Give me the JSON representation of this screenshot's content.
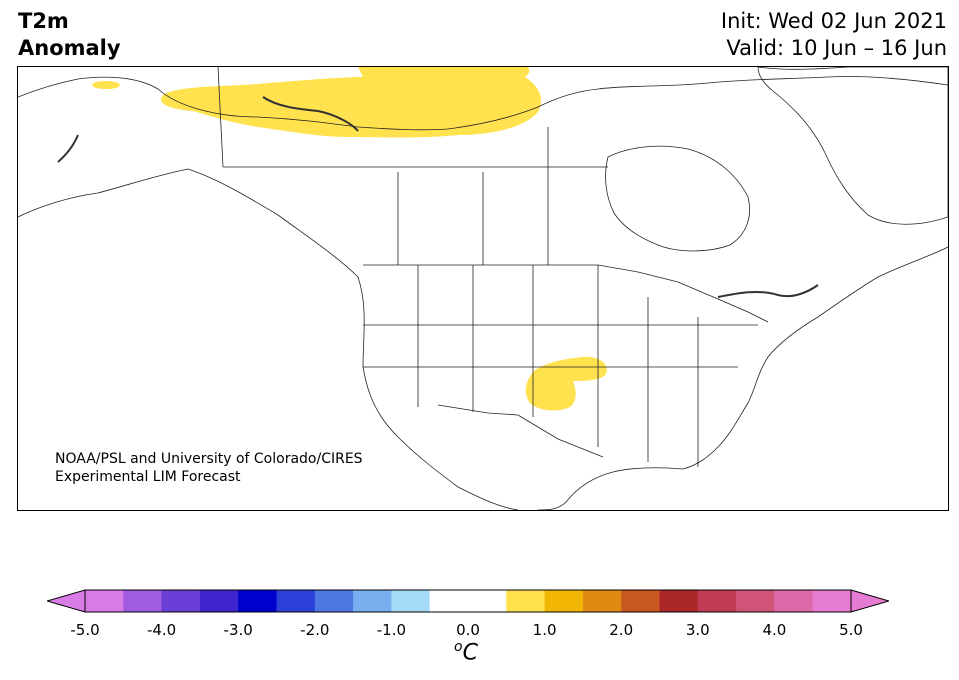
{
  "title": {
    "left_line1": "T2m",
    "left_line2": "Anomaly",
    "init": "Init: Wed 02 Jun 2021",
    "valid": "Valid: 10 Jun – 16 Jun"
  },
  "credit": {
    "line1": "NOAA/PSL and University of Colorado/CIRES",
    "line2": "Experimental LIM Forecast"
  },
  "colorbar": {
    "unit_sup": "o",
    "unit_main": "C",
    "ticks": [
      "-5.0",
      "-4.0",
      "-3.0",
      "-2.0",
      "-1.0",
      "0.0",
      "1.0",
      "2.0",
      "3.0",
      "4.0",
      "5.0"
    ],
    "colors": [
      "#d97be6",
      "#a05ce0",
      "#6a3fd8",
      "#3f23cc",
      "#0000cc",
      "#2a40d8",
      "#4d78e4",
      "#77afef",
      "#a6dbf8",
      "#ffffff",
      "#ffffff",
      "#ffe24d",
      "#f2b705",
      "#e08a14",
      "#c85820",
      "#ac2828",
      "#bf3c54",
      "#cf5478",
      "#dc6aa8",
      "#e57bd3"
    ],
    "extend_low": "#d97be6",
    "extend_high": "#e57bd3"
  },
  "anomaly_fill_color": "#ffe24d"
}
